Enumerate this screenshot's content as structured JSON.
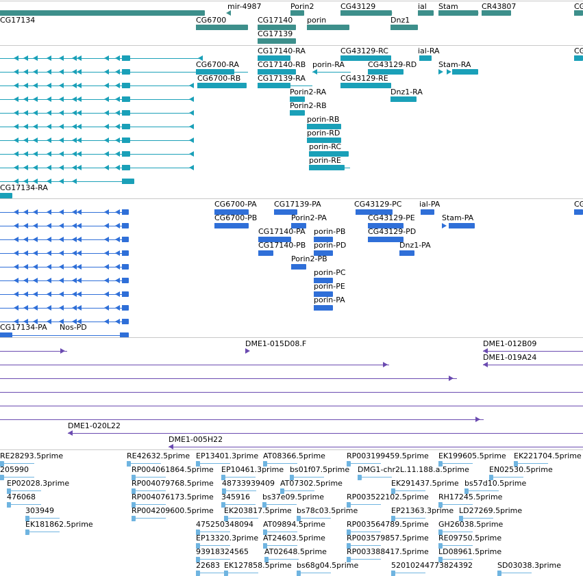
{
  "colors": {
    "gene": "#3d8f8b",
    "transcript": "#1aa0b8",
    "protein": "#2f6fd8",
    "clone": "#6a4ab0",
    "est": "#6fb4e0"
  },
  "tracks": {
    "genes": {
      "labels": [
        "mir-4987",
        "Porin2",
        "CG43129",
        "ial",
        "Stam",
        "CR43807",
        "CG",
        "CG17134",
        "CG6700",
        "CG17140",
        "porin",
        "Dnz1",
        "CG17139"
      ]
    },
    "transcripts": {
      "labels": [
        "CG17140-RA",
        "CG43129-RC",
        "ial-RA",
        "CG",
        "CG6700-RA",
        "CG17140-RB",
        "porin-RA",
        "CG43129-RD",
        "Stam-RA",
        "CG6700-RB",
        "CG17139-RA",
        "CG43129-RE",
        "Porin2-RA",
        "Dnz1-RA",
        "Porin2-RB",
        "porin-RB",
        "porin-RD",
        "porin-RC",
        "porin-RE",
        "CG17134-RA"
      ]
    },
    "proteins": {
      "labels": [
        "CG6700-PA",
        "CG17139-PA",
        "CG43129-PC",
        "ial-PA",
        "CG",
        "CG6700-PB",
        "Porin2-PA",
        "CG43129-PE",
        "Stam-PA",
        "CG17140-PA",
        "porin-PB",
        "CG43129-PD",
        "CG17140-PB",
        "porin-PD",
        "Dnz1-PA",
        "Porin2-PB",
        "porin-PC",
        "porin-PE",
        "porin-PA",
        "CG17134-PA",
        "Nos-PD"
      ]
    },
    "clones": {
      "labels": [
        "DME1-015D08.F",
        "DME1-012B09",
        "DME1-019A24",
        "DME1-020L22",
        "DME1-005H22"
      ]
    },
    "ests": {
      "labels": [
        "RE28293.5prime",
        "RE42632.5prime",
        "EP13401.3prime",
        "AT08366.5prime",
        "RP003199459.5prime",
        "EK199605.5prime",
        "EK221704.5prime",
        "205990",
        "RP004061864.5prime",
        "EP10461.3prime",
        "bs01f07.5prime",
        "DMG1-chr2L.11.188.a.5prime",
        "EN02530.5prime",
        "EP02028.3prime",
        "RP004079768.5prime",
        "48733939409",
        "AT07302.5prime",
        "EK291437.5prime",
        "bs57d10.5prime",
        "476068",
        "RP004076173.5prime",
        "345916",
        "bs37e09.5prime",
        "RP003522102.5prime",
        "RH17245.5prime",
        "303949",
        "RP004209600.5prime",
        "EK203817.5prime",
        "bs78c03.5prime",
        "EP21363.3prime",
        "LD27269.5prime",
        "EK181862.5prime",
        "475250348094",
        "AT09894.5prime",
        "RP003564789.5prime",
        "GH26038.5prime",
        "EP13320.3prime",
        "AT24603.5prime",
        "RP003579857.5prime",
        "RE09750.5prime",
        "93918324565",
        "AT02648.5prime",
        "RP003388417.5prime",
        "LD08961.5prime",
        "22683",
        "EK127858.5prime",
        "bs68g04.5prime",
        "52010244773824392",
        "SD03038.3prime"
      ]
    }
  }
}
